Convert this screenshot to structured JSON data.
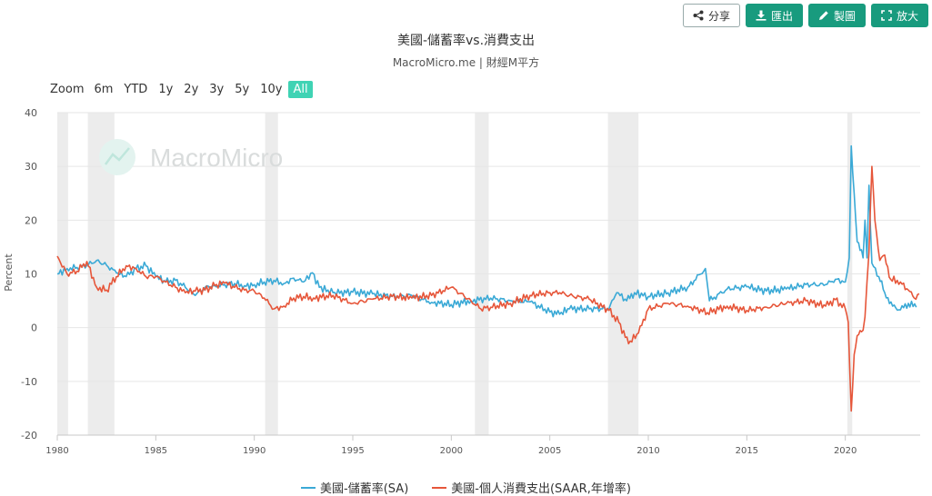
{
  "toolbar": {
    "share_label": "分享",
    "export_label": "匯出",
    "draw_label": "製圖",
    "expand_label": "放大"
  },
  "header": {
    "title": "美國-儲蓄率vs.消費支出",
    "subtitle": "MacroMicro.me | 財經M平方"
  },
  "range_selector": {
    "label": "Zoom",
    "options": [
      "6m",
      "YTD",
      "1y",
      "2y",
      "3y",
      "5y",
      "10y",
      "All"
    ],
    "active": "All"
  },
  "watermark": "MacroMicro",
  "colors": {
    "savings": "#3aa9d6",
    "consumption": "#e6563a",
    "recession": "#ececec",
    "grid": "#e6e6e6",
    "accent": "#189b7e"
  },
  "chart_data": {
    "type": "line",
    "title": "美國-儲蓄率vs.消費支出",
    "ylabel": "Percent",
    "xlabel": "",
    "ylim": [
      -20,
      40
    ],
    "yticks": [
      -20,
      -10,
      0,
      10,
      20,
      30,
      40
    ],
    "xlim": [
      1980,
      2023.8
    ],
    "xticks": [
      1980,
      1985,
      1990,
      1995,
      2000,
      2005,
      2010,
      2015,
      2020
    ],
    "grid": true,
    "legend_position": "bottom",
    "recessions": [
      [
        1980.0,
        1980.55
      ],
      [
        1981.55,
        1982.9
      ],
      [
        1990.55,
        1991.2
      ],
      [
        2001.2,
        2001.9
      ],
      [
        2007.95,
        2009.5
      ],
      [
        2020.1,
        2020.35
      ]
    ],
    "series": [
      {
        "name": "美國-儲蓄率(SA)",
        "color": "#3aa9d6",
        "points": [
          [
            1980,
            10
          ],
          [
            1980.5,
            11
          ],
          [
            1981,
            11.2
          ],
          [
            1981.5,
            11.6
          ],
          [
            1982,
            12.5
          ],
          [
            1982.5,
            11.6
          ],
          [
            1983,
            10.2
          ],
          [
            1983.5,
            9.5
          ],
          [
            1984,
            11
          ],
          [
            1984.5,
            11.5
          ],
          [
            1985,
            9.5
          ],
          [
            1985.5,
            8.5
          ],
          [
            1986,
            8.8
          ],
          [
            1986.5,
            7.5
          ],
          [
            1987,
            6
          ],
          [
            1987.5,
            7.5
          ],
          [
            1988,
            7.8
          ],
          [
            1988.5,
            8
          ],
          [
            1989,
            8.2
          ],
          [
            1989.5,
            7.8
          ],
          [
            1990,
            8
          ],
          [
            1990.5,
            8.5
          ],
          [
            1991,
            8.8
          ],
          [
            1991.5,
            8.2
          ],
          [
            1992,
            9.2
          ],
          [
            1992.5,
            8.5
          ],
          [
            1992.95,
            10.2
          ],
          [
            1993.3,
            7.5
          ],
          [
            1994,
            6.5
          ],
          [
            1995,
            6.6
          ],
          [
            1996,
            6.3
          ],
          [
            1997,
            5.8
          ],
          [
            1998,
            6
          ],
          [
            1999,
            4.7
          ],
          [
            2000,
            4.3
          ],
          [
            2001,
            5
          ],
          [
            2002,
            5.5
          ],
          [
            2003,
            5
          ],
          [
            2004,
            4.8
          ],
          [
            2005,
            2.9
          ],
          [
            2005.5,
            2.5
          ],
          [
            2006,
            3.5
          ],
          [
            2007,
            3.5
          ],
          [
            2008,
            3.5
          ],
          [
            2008.4,
            6.5
          ],
          [
            2008.9,
            5
          ],
          [
            2009.3,
            6.5
          ],
          [
            2010,
            5.8
          ],
          [
            2011,
            6.5
          ],
          [
            2012,
            7.5
          ],
          [
            2012.9,
            11
          ],
          [
            2013.1,
            5
          ],
          [
            2014,
            7.2
          ],
          [
            2015,
            7.6
          ],
          [
            2016,
            6.8
          ],
          [
            2017,
            7.2
          ],
          [
            2018,
            8
          ],
          [
            2019,
            8
          ],
          [
            2019.5,
            9
          ],
          [
            2020,
            8.5
          ],
          [
            2020.2,
            13
          ],
          [
            2020.3,
            33.8
          ],
          [
            2020.45,
            25
          ],
          [
            2020.6,
            16
          ],
          [
            2020.9,
            13
          ],
          [
            2021,
            20
          ],
          [
            2021.1,
            13
          ],
          [
            2021.2,
            26.5
          ],
          [
            2021.35,
            12
          ],
          [
            2021.7,
            9.5
          ],
          [
            2022,
            6.5
          ],
          [
            2022.4,
            4
          ],
          [
            2022.8,
            3.3
          ],
          [
            2023.2,
            4.5
          ],
          [
            2023.6,
            3.8
          ]
        ]
      },
      {
        "name": "美國-個人消費支出(SAAR,年增率)",
        "color": "#e6563a",
        "points": [
          [
            1980,
            13.3
          ],
          [
            1980.5,
            10
          ],
          [
            1981,
            10.5
          ],
          [
            1981.5,
            12.3
          ],
          [
            1982,
            7.5
          ],
          [
            1982.5,
            7
          ],
          [
            1983,
            9.5
          ],
          [
            1983.5,
            11.5
          ],
          [
            1984,
            11
          ],
          [
            1984.5,
            9.5
          ],
          [
            1985,
            9.5
          ],
          [
            1985.5,
            8.5
          ],
          [
            1986,
            7.5
          ],
          [
            1986.5,
            6.5
          ],
          [
            1987,
            6.8
          ],
          [
            1987.5,
            7
          ],
          [
            1988,
            7.8
          ],
          [
            1988.5,
            8.3
          ],
          [
            1989,
            7.5
          ],
          [
            1989.5,
            7
          ],
          [
            1990,
            6.8
          ],
          [
            1990.5,
            5.5
          ],
          [
            1991,
            3.5
          ],
          [
            1991.5,
            4
          ],
          [
            1992,
            5.5
          ],
          [
            1992.5,
            5.8
          ],
          [
            1993,
            5.5
          ],
          [
            1994,
            6
          ],
          [
            1995,
            4.5
          ],
          [
            1996,
            5.3
          ],
          [
            1997,
            5.8
          ],
          [
            1998,
            5.5
          ],
          [
            1999,
            6
          ],
          [
            2000,
            7.5
          ],
          [
            2001,
            5
          ],
          [
            2001.5,
            3.5
          ],
          [
            2002,
            3.8
          ],
          [
            2003,
            4.5
          ],
          [
            2004,
            6
          ],
          [
            2005,
            6.5
          ],
          [
            2005.5,
            6.5
          ],
          [
            2006,
            6
          ],
          [
            2007,
            5.3
          ],
          [
            2008,
            3.2
          ],
          [
            2008.5,
            1
          ],
          [
            2009,
            -3
          ],
          [
            2009.5,
            -1
          ],
          [
            2010,
            3.5
          ],
          [
            2011,
            4.5
          ],
          [
            2012,
            4
          ],
          [
            2013,
            2.8
          ],
          [
            2014,
            4
          ],
          [
            2015,
            3.2
          ],
          [
            2016,
            3.8
          ],
          [
            2017,
            4.5
          ],
          [
            2018,
            5
          ],
          [
            2019,
            4
          ],
          [
            2019.5,
            5.2
          ],
          [
            2020,
            3.5
          ],
          [
            2020.15,
            1
          ],
          [
            2020.3,
            -15.5
          ],
          [
            2020.45,
            -5
          ],
          [
            2020.6,
            -1.5
          ],
          [
            2020.9,
            -0.5
          ],
          [
            2021,
            2
          ],
          [
            2021.2,
            14
          ],
          [
            2021.35,
            30
          ],
          [
            2021.5,
            20
          ],
          [
            2021.75,
            12.5
          ],
          [
            2022,
            13.5
          ],
          [
            2022.3,
            9
          ],
          [
            2022.8,
            8.5
          ],
          [
            2023.2,
            7
          ],
          [
            2023.5,
            5.5
          ],
          [
            2023.75,
            6.3
          ]
        ]
      }
    ]
  }
}
